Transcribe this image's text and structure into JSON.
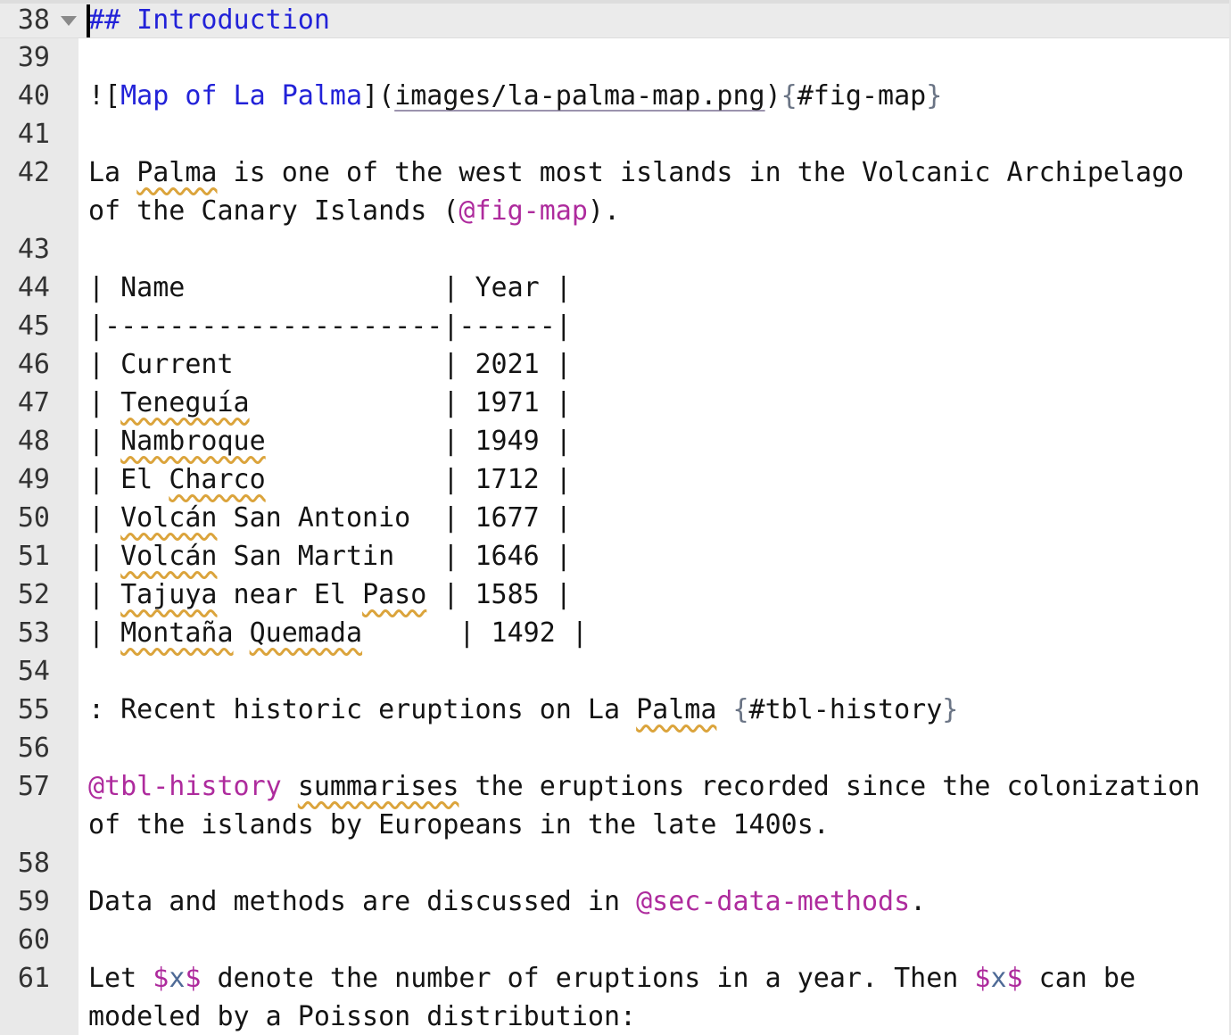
{
  "editor": {
    "colors": {
      "background": "#ffffff",
      "gutter_bg": "#e9e9e9",
      "active_line_bg": "#ebebeb",
      "active_line_edge": "#dddddd",
      "text": "#141414",
      "line_number": "#333333",
      "heading_link_blue": "#2222d8",
      "reference_magenta": "#ae2b9d",
      "brace_slate": "#6a7485",
      "math_variable_blue": "#4e6a96",
      "spellcheck_squiggle": "#dba43c",
      "path_underline": "#9b93ad",
      "cursor": "#000000",
      "fold_arrow": "#8a8a8a"
    },
    "icons": {
      "fold": "chevron-down-fold-marker",
      "cursor": "text-caret"
    },
    "rows": [
      {
        "line": "38",
        "active": true,
        "cursor": true,
        "fold": true,
        "segments": [
          {
            "t": "## Introduction",
            "c": "blue"
          }
        ]
      },
      {
        "line": "39",
        "segments": []
      },
      {
        "line": "40",
        "segments": [
          {
            "t": "![",
            "c": "text"
          },
          {
            "t": "Map of La Palma",
            "c": "blue"
          },
          {
            "t": "](",
            "c": "text"
          },
          {
            "t": "images/la-palma-map.png",
            "c": "path"
          },
          {
            "t": ")",
            "c": "text"
          },
          {
            "t": "{",
            "c": "brace"
          },
          {
            "t": "#fig-map",
            "c": "text"
          },
          {
            "t": "}",
            "c": "brace"
          }
        ]
      },
      {
        "line": "41",
        "segments": []
      },
      {
        "line": "42",
        "segments": [
          {
            "t": "La ",
            "c": "text"
          },
          {
            "t": "Palma",
            "c": "sq"
          },
          {
            "t": " is one of the west most islands in the Volcanic Archipelago",
            "c": "text"
          }
        ]
      },
      {
        "line": null,
        "segments": [
          {
            "t": "of the Canary Islands (",
            "c": "text"
          },
          {
            "t": "@fig-map",
            "c": "magenta"
          },
          {
            "t": ").",
            "c": "text"
          }
        ]
      },
      {
        "line": "43",
        "segments": []
      },
      {
        "line": "44",
        "segments": [
          {
            "t": "| Name                | Year |",
            "c": "text"
          }
        ]
      },
      {
        "line": "45",
        "segments": [
          {
            "t": "|---------------------|------|",
            "c": "text"
          }
        ]
      },
      {
        "line": "46",
        "segments": [
          {
            "t": "| Current             | 2021 |",
            "c": "text"
          }
        ]
      },
      {
        "line": "47",
        "segments": [
          {
            "t": "| ",
            "c": "text"
          },
          {
            "t": "Teneguía",
            "c": "sq"
          },
          {
            "t": "            | 1971 |",
            "c": "text"
          }
        ]
      },
      {
        "line": "48",
        "segments": [
          {
            "t": "| ",
            "c": "text"
          },
          {
            "t": "Nambroque",
            "c": "sq"
          },
          {
            "t": "           | 1949 |",
            "c": "text"
          }
        ]
      },
      {
        "line": "49",
        "segments": [
          {
            "t": "| El ",
            "c": "text"
          },
          {
            "t": "Charco",
            "c": "sq"
          },
          {
            "t": "           | 1712 |",
            "c": "text"
          }
        ]
      },
      {
        "line": "50",
        "segments": [
          {
            "t": "| ",
            "c": "text"
          },
          {
            "t": "Volcán",
            "c": "sq"
          },
          {
            "t": " San Antonio  | 1677 |",
            "c": "text"
          }
        ]
      },
      {
        "line": "51",
        "segments": [
          {
            "t": "| ",
            "c": "text"
          },
          {
            "t": "Volcán",
            "c": "sq"
          },
          {
            "t": " San Martin   | 1646 |",
            "c": "text"
          }
        ]
      },
      {
        "line": "52",
        "segments": [
          {
            "t": "| ",
            "c": "text"
          },
          {
            "t": "Tajuya",
            "c": "sq"
          },
          {
            "t": " near El ",
            "c": "text"
          },
          {
            "t": "Paso",
            "c": "sq"
          },
          {
            "t": " | 1585 |",
            "c": "text"
          }
        ]
      },
      {
        "line": "53",
        "segments": [
          {
            "t": "| ",
            "c": "text"
          },
          {
            "t": "Montaña",
            "c": "sq"
          },
          {
            "t": " ",
            "c": "text"
          },
          {
            "t": "Quemada",
            "c": "sq"
          },
          {
            "t": "      | 1492 |",
            "c": "text"
          }
        ]
      },
      {
        "line": "54",
        "segments": []
      },
      {
        "line": "55",
        "segments": [
          {
            "t": ": Recent historic eruptions on La ",
            "c": "text"
          },
          {
            "t": "Palma",
            "c": "sq"
          },
          {
            "t": " ",
            "c": "text"
          },
          {
            "t": "{",
            "c": "brace"
          },
          {
            "t": "#tbl-history",
            "c": "text"
          },
          {
            "t": "}",
            "c": "brace"
          }
        ]
      },
      {
        "line": "56",
        "segments": []
      },
      {
        "line": "57",
        "segments": [
          {
            "t": "@tbl-history",
            "c": "magenta"
          },
          {
            "t": " ",
            "c": "text"
          },
          {
            "t": "summarises",
            "c": "sq"
          },
          {
            "t": " the eruptions recorded since the colonization",
            "c": "text"
          }
        ]
      },
      {
        "line": null,
        "segments": [
          {
            "t": "of the islands by Europeans in the late 1400s.",
            "c": "text"
          }
        ]
      },
      {
        "line": "58",
        "segments": []
      },
      {
        "line": "59",
        "segments": [
          {
            "t": "Data and methods are discussed in ",
            "c": "text"
          },
          {
            "t": "@sec-data-methods",
            "c": "magenta"
          },
          {
            "t": ".",
            "c": "text"
          }
        ]
      },
      {
        "line": "60",
        "segments": []
      },
      {
        "line": "61",
        "segments": [
          {
            "t": "Let ",
            "c": "text"
          },
          {
            "t": "$",
            "c": "magenta"
          },
          {
            "t": "x",
            "c": "mathvar"
          },
          {
            "t": "$",
            "c": "magenta"
          },
          {
            "t": " denote the number of eruptions in a year. Then ",
            "c": "text"
          },
          {
            "t": "$",
            "c": "magenta"
          },
          {
            "t": "x",
            "c": "mathvar"
          },
          {
            "t": "$",
            "c": "magenta"
          },
          {
            "t": " can be",
            "c": "text"
          }
        ]
      },
      {
        "line": null,
        "segments": [
          {
            "t": "modeled by a Poisson distribution:",
            "c": "text"
          }
        ]
      }
    ]
  }
}
